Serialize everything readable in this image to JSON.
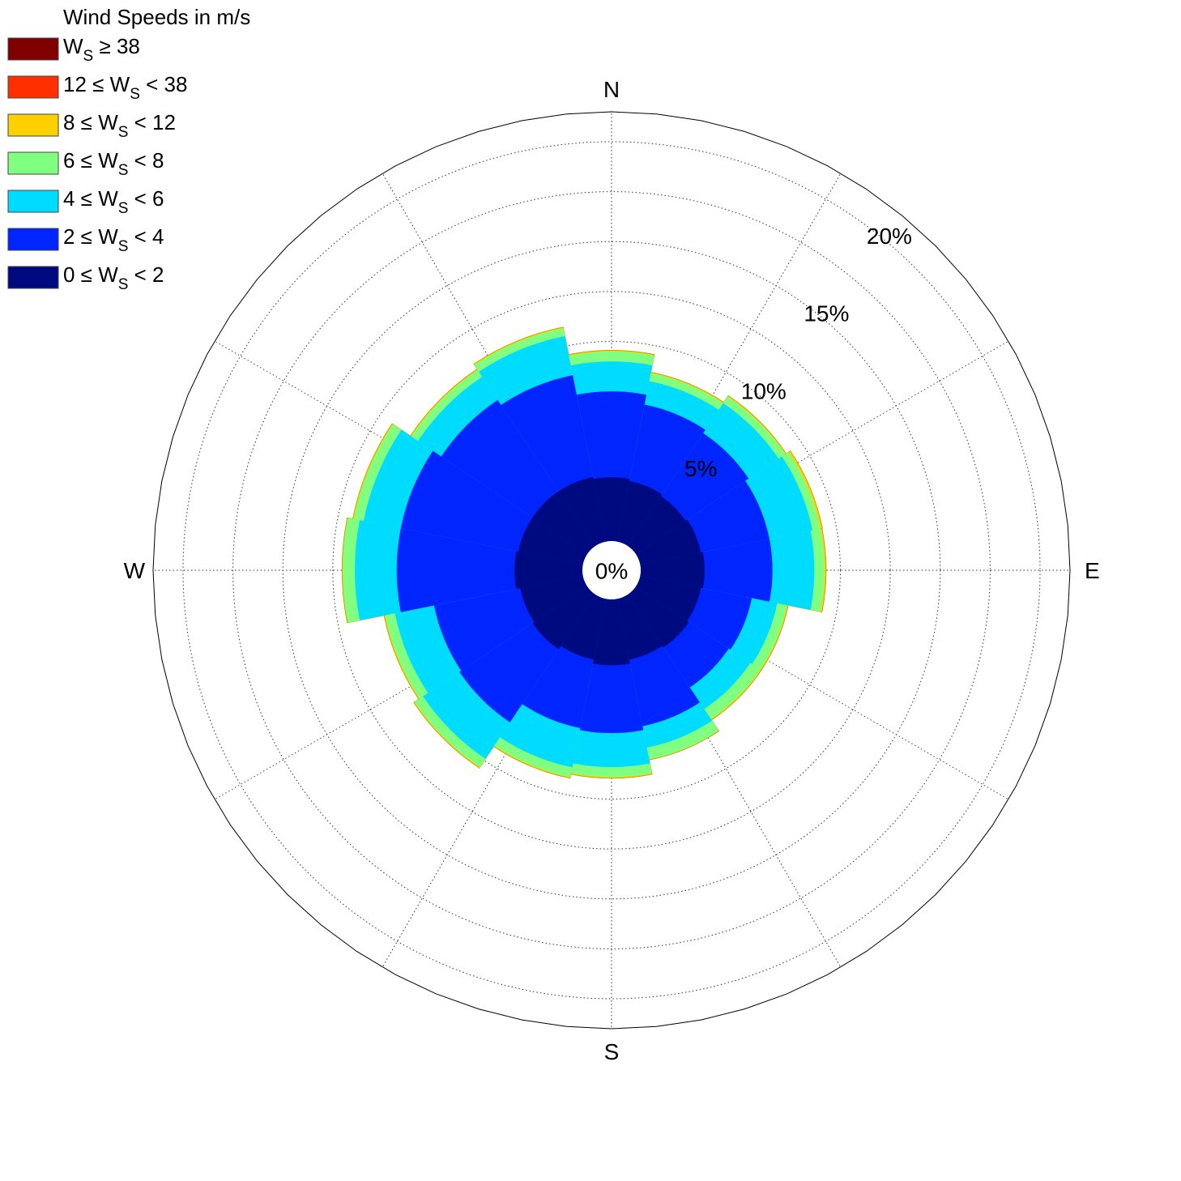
{
  "chart_data": {
    "type": "windrose",
    "legend_title": "Wind Speeds in m/s",
    "directions": [
      "N",
      "NNE",
      "NE",
      "ENE",
      "E",
      "ESE",
      "SE",
      "SSE",
      "S",
      "SSW",
      "SW",
      "WSW",
      "W",
      "WNW",
      "NW",
      "NNW"
    ],
    "compass_labels": [
      "N",
      "E",
      "S",
      "W"
    ],
    "ring_values": [
      5,
      10,
      15,
      20
    ],
    "ring_labels": [
      "5%",
      "10%",
      "15%",
      "20%"
    ],
    "center_label": "0%",
    "rmax": 21.5,
    "bins": [
      {
        "label_pre": "",
        "label_mid": "W",
        "label_sub": "S",
        "label_post": " ≥ 38",
        "color": "#800000"
      },
      {
        "label_pre": "12 ≤ ",
        "label_mid": "W",
        "label_sub": "S",
        "label_post": " < 38",
        "color": "#ff3000"
      },
      {
        "label_pre": "8 ≤ ",
        "label_mid": "W",
        "label_sub": "S",
        "label_post": " < 12",
        "color": "#ffd000"
      },
      {
        "label_pre": "6 ≤ ",
        "label_mid": "W",
        "label_sub": "S",
        "label_post": " < 8",
        "color": "#80ff80"
      },
      {
        "label_pre": "4 ≤ ",
        "label_mid": "W",
        "label_sub": "S",
        "label_post": " < 6",
        "color": "#00dcff"
      },
      {
        "label_pre": "2 ≤ ",
        "label_mid": "W",
        "label_sub": "S",
        "label_post": " < 4",
        "color": "#0025ff"
      },
      {
        "label_pre": "0 ≤ ",
        "label_mid": "W",
        "label_sub": "S",
        "label_post": " < 2",
        "color": "#000a80"
      }
    ],
    "cumulative_percent": {
      "0-2": [
        3.2,
        3.1,
        3.0,
        3.1,
        3.2,
        3.1,
        3.2,
        3.1,
        3.3,
        3.1,
        3.3,
        3.2,
        3.4,
        3.3,
        3.3,
        3.3
      ],
      "2-4": [
        7.5,
        7.0,
        6.8,
        6.6,
        6.6,
        5.7,
        5.6,
        6.5,
        6.7,
        6.6,
        7.7,
        7.6,
        9.3,
        9.3,
        8.8,
        8.5
      ],
      "4-6": [
        9.0,
        8.2,
        8.6,
        8.8,
        8.7,
        7.0,
        6.9,
        7.6,
        8.4,
        8.6,
        9.9,
        9.6,
        11.4,
        11.2,
        10.2,
        10.5
      ],
      "6-8": [
        9.5,
        8.6,
        9.0,
        9.2,
        9.2,
        7.5,
        7.5,
        8.2,
        8.9,
        9.1,
        10.4,
        10.1,
        12.0,
        11.7,
        10.6,
        10.9
      ],
      "8-12": [
        9.55,
        8.65,
        9.05,
        9.3,
        9.28,
        7.55,
        7.55,
        8.22,
        8.95,
        9.15,
        10.45,
        10.15,
        12.03,
        11.75,
        10.65,
        10.95
      ],
      "12-38": [
        9.56,
        8.66,
        9.06,
        9.31,
        9.29,
        7.56,
        7.56,
        8.23,
        8.96,
        9.16,
        10.46,
        10.16,
        12.04,
        11.76,
        10.66,
        10.96
      ],
      "38+": [
        9.56,
        8.66,
        9.06,
        9.31,
        9.29,
        7.56,
        7.56,
        8.23,
        8.96,
        9.16,
        10.46,
        10.16,
        12.04,
        11.76,
        10.66,
        10.96
      ]
    },
    "grid": true
  }
}
